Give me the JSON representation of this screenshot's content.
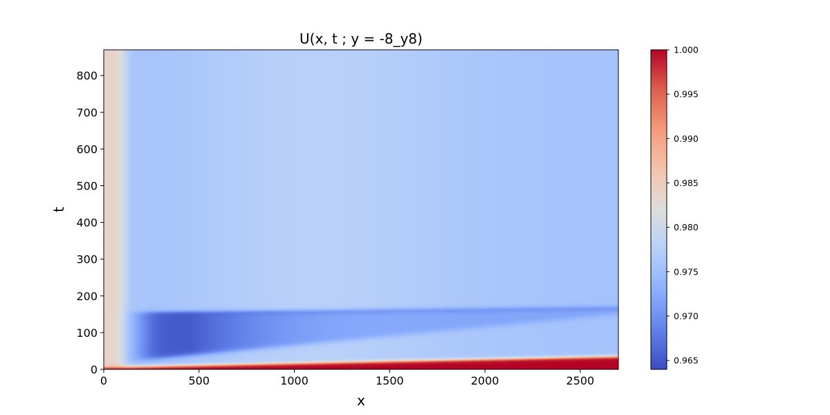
{
  "chart_data": {
    "type": "heatmap",
    "title": "U(x, t ; y = -8_y8)",
    "xlabel": "x",
    "ylabel": "t",
    "xlim": [
      0,
      2700
    ],
    "ylim": [
      0,
      870
    ],
    "xticks": [
      0,
      500,
      1000,
      1500,
      2000,
      2500
    ],
    "yticks": [
      0,
      100,
      200,
      300,
      400,
      500,
      600,
      700,
      800
    ],
    "colormap": "coolwarm",
    "colorbar": {
      "vmin": 0.964,
      "vmax": 1.0,
      "ticks": [
        "0.965",
        "0.970",
        "0.975",
        "0.980",
        "0.985",
        "0.990",
        "0.995",
        "1.000"
      ]
    },
    "field_description": {
      "left_boundary_value": 0.984,
      "far_field_value": 0.977,
      "minimum_value": 0.965,
      "minimum_location": {
        "x": 450,
        "t": 80
      },
      "band_t_range": [
        15,
        155
      ],
      "high_value_front": {
        "value": 1.0,
        "t_at_x_0": 5,
        "t_at_x_2700": 35
      }
    }
  }
}
